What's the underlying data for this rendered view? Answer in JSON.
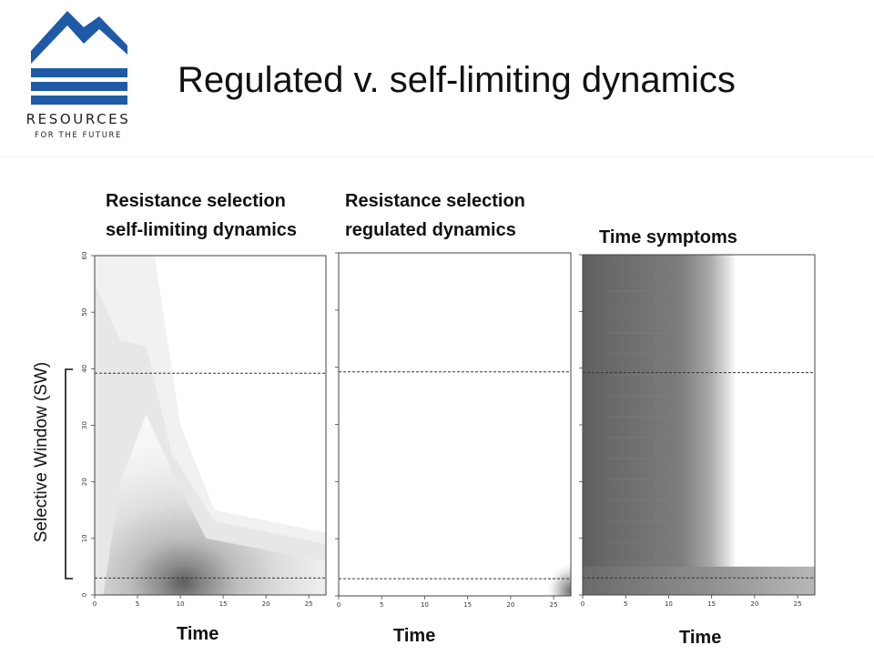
{
  "slide": {
    "title": "Regulated v. self-limiting dynamics",
    "logo": {
      "name": "RESOURCES",
      "tagline": "FOR THE FUTURE",
      "color": "#1f5aa6"
    },
    "y_bracket_label": "Selective Window (SW)"
  },
  "chart_data": [
    {
      "type": "heatmap",
      "title": "Resistance selection self-limiting dynamics",
      "caption_lines": [
        "Resistance selection",
        "self-limiting dynamics"
      ],
      "xlabel": "Time",
      "ylabel": "",
      "xlim": [
        0,
        27
      ],
      "ylim": [
        0,
        60
      ],
      "x_ticks": [
        0,
        5,
        10,
        15,
        20,
        25
      ],
      "y_ticks": [
        0,
        10,
        20,
        30,
        40,
        50,
        60
      ],
      "reference_lines_y": [
        3,
        39.2
      ],
      "peak": {
        "x": 7,
        "y": 5
      }
    },
    {
      "type": "heatmap",
      "title": "Resistance selection regulated dynamics",
      "caption_lines": [
        "Resistance selection",
        "regulated dynamics"
      ],
      "xlabel": "Time",
      "ylabel": "",
      "xlim": [
        0,
        27
      ],
      "ylim": [
        0,
        60
      ],
      "x_ticks": [
        0,
        5,
        10,
        15,
        20,
        25
      ],
      "reference_lines_y": [
        3,
        39.2
      ],
      "peak": {
        "x": 27,
        "y": 4
      }
    },
    {
      "type": "heatmap",
      "title": "Time symptoms",
      "caption_lines": [
        "Time symptoms"
      ],
      "xlabel": "Time",
      "ylabel": "",
      "xlim": [
        0,
        27
      ],
      "ylim": [
        0,
        60
      ],
      "x_ticks": [
        0,
        5,
        10,
        15,
        20,
        25
      ],
      "reference_lines_y": [
        3,
        39.2
      ],
      "dark_region": {
        "x_end": 17,
        "band_below_y": 5
      }
    }
  ]
}
